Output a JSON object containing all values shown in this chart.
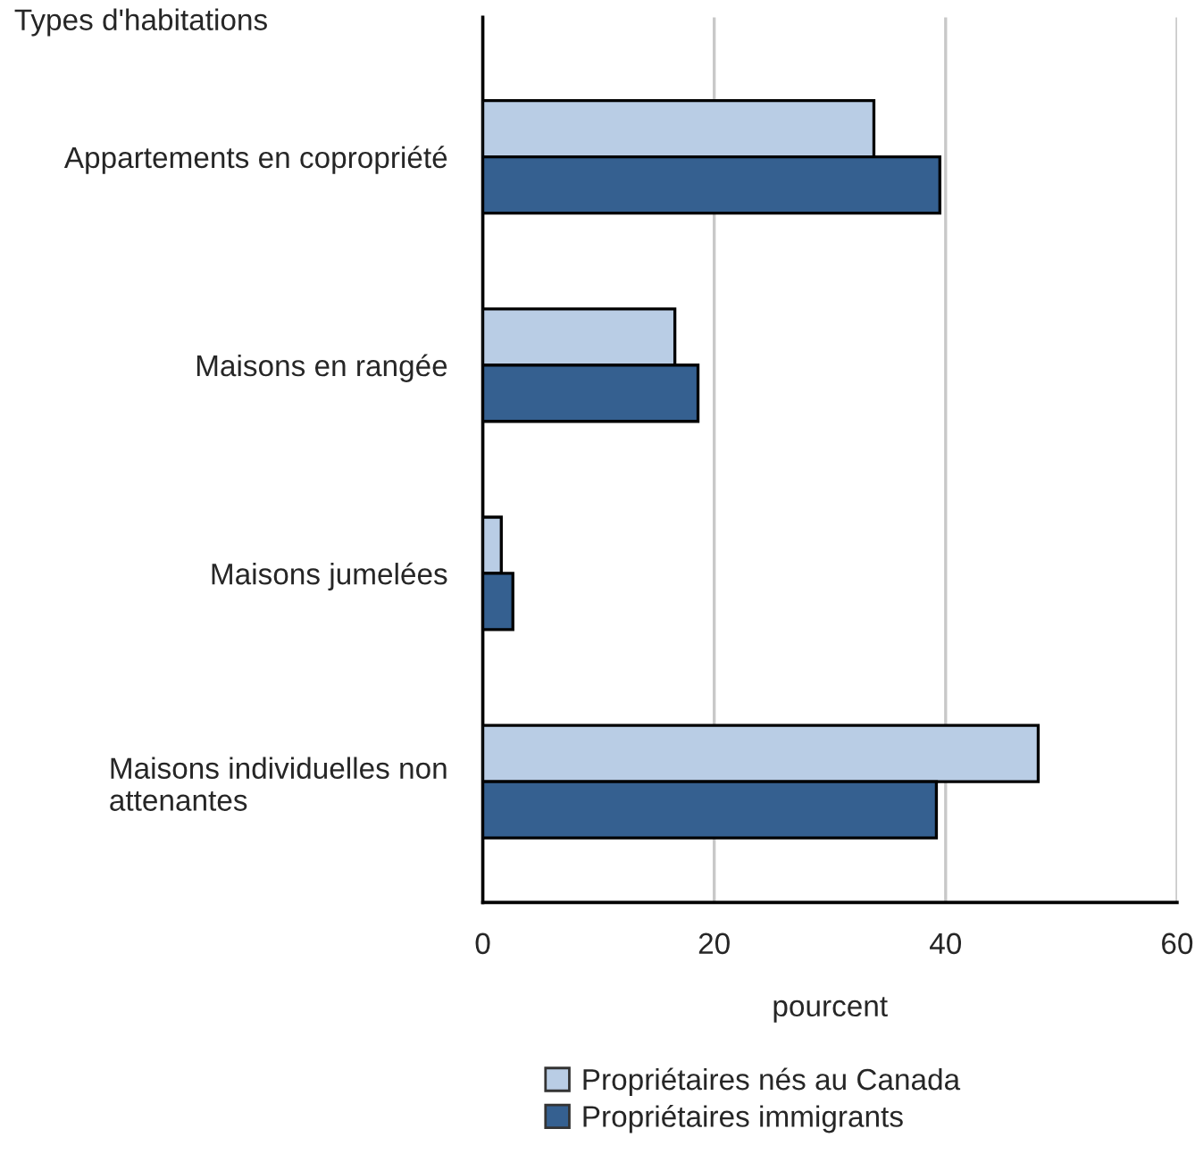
{
  "chart_data": {
    "type": "bar",
    "orientation": "horizontal",
    "ylabel": "Types d'habitations",
    "xlabel": "pourcent",
    "categories": [
      "Appartements en copropriété",
      "Maisons en rangée",
      "Maisons jumelées",
      "Maisons individuelles non\nattenantes"
    ],
    "series": [
      {
        "name": "Propriétaires nés au Canada",
        "color": "#b9cde5",
        "values": [
          33.8,
          16.6,
          1.6,
          48.0
        ]
      },
      {
        "name": "Propriétaires immigrants",
        "color": "#356090",
        "values": [
          39.5,
          18.6,
          2.6,
          39.2
        ]
      }
    ],
    "xlim": [
      0,
      60
    ],
    "xticks": [
      0,
      20,
      40,
      60
    ],
    "grid": "x",
    "legend": "bottom"
  }
}
